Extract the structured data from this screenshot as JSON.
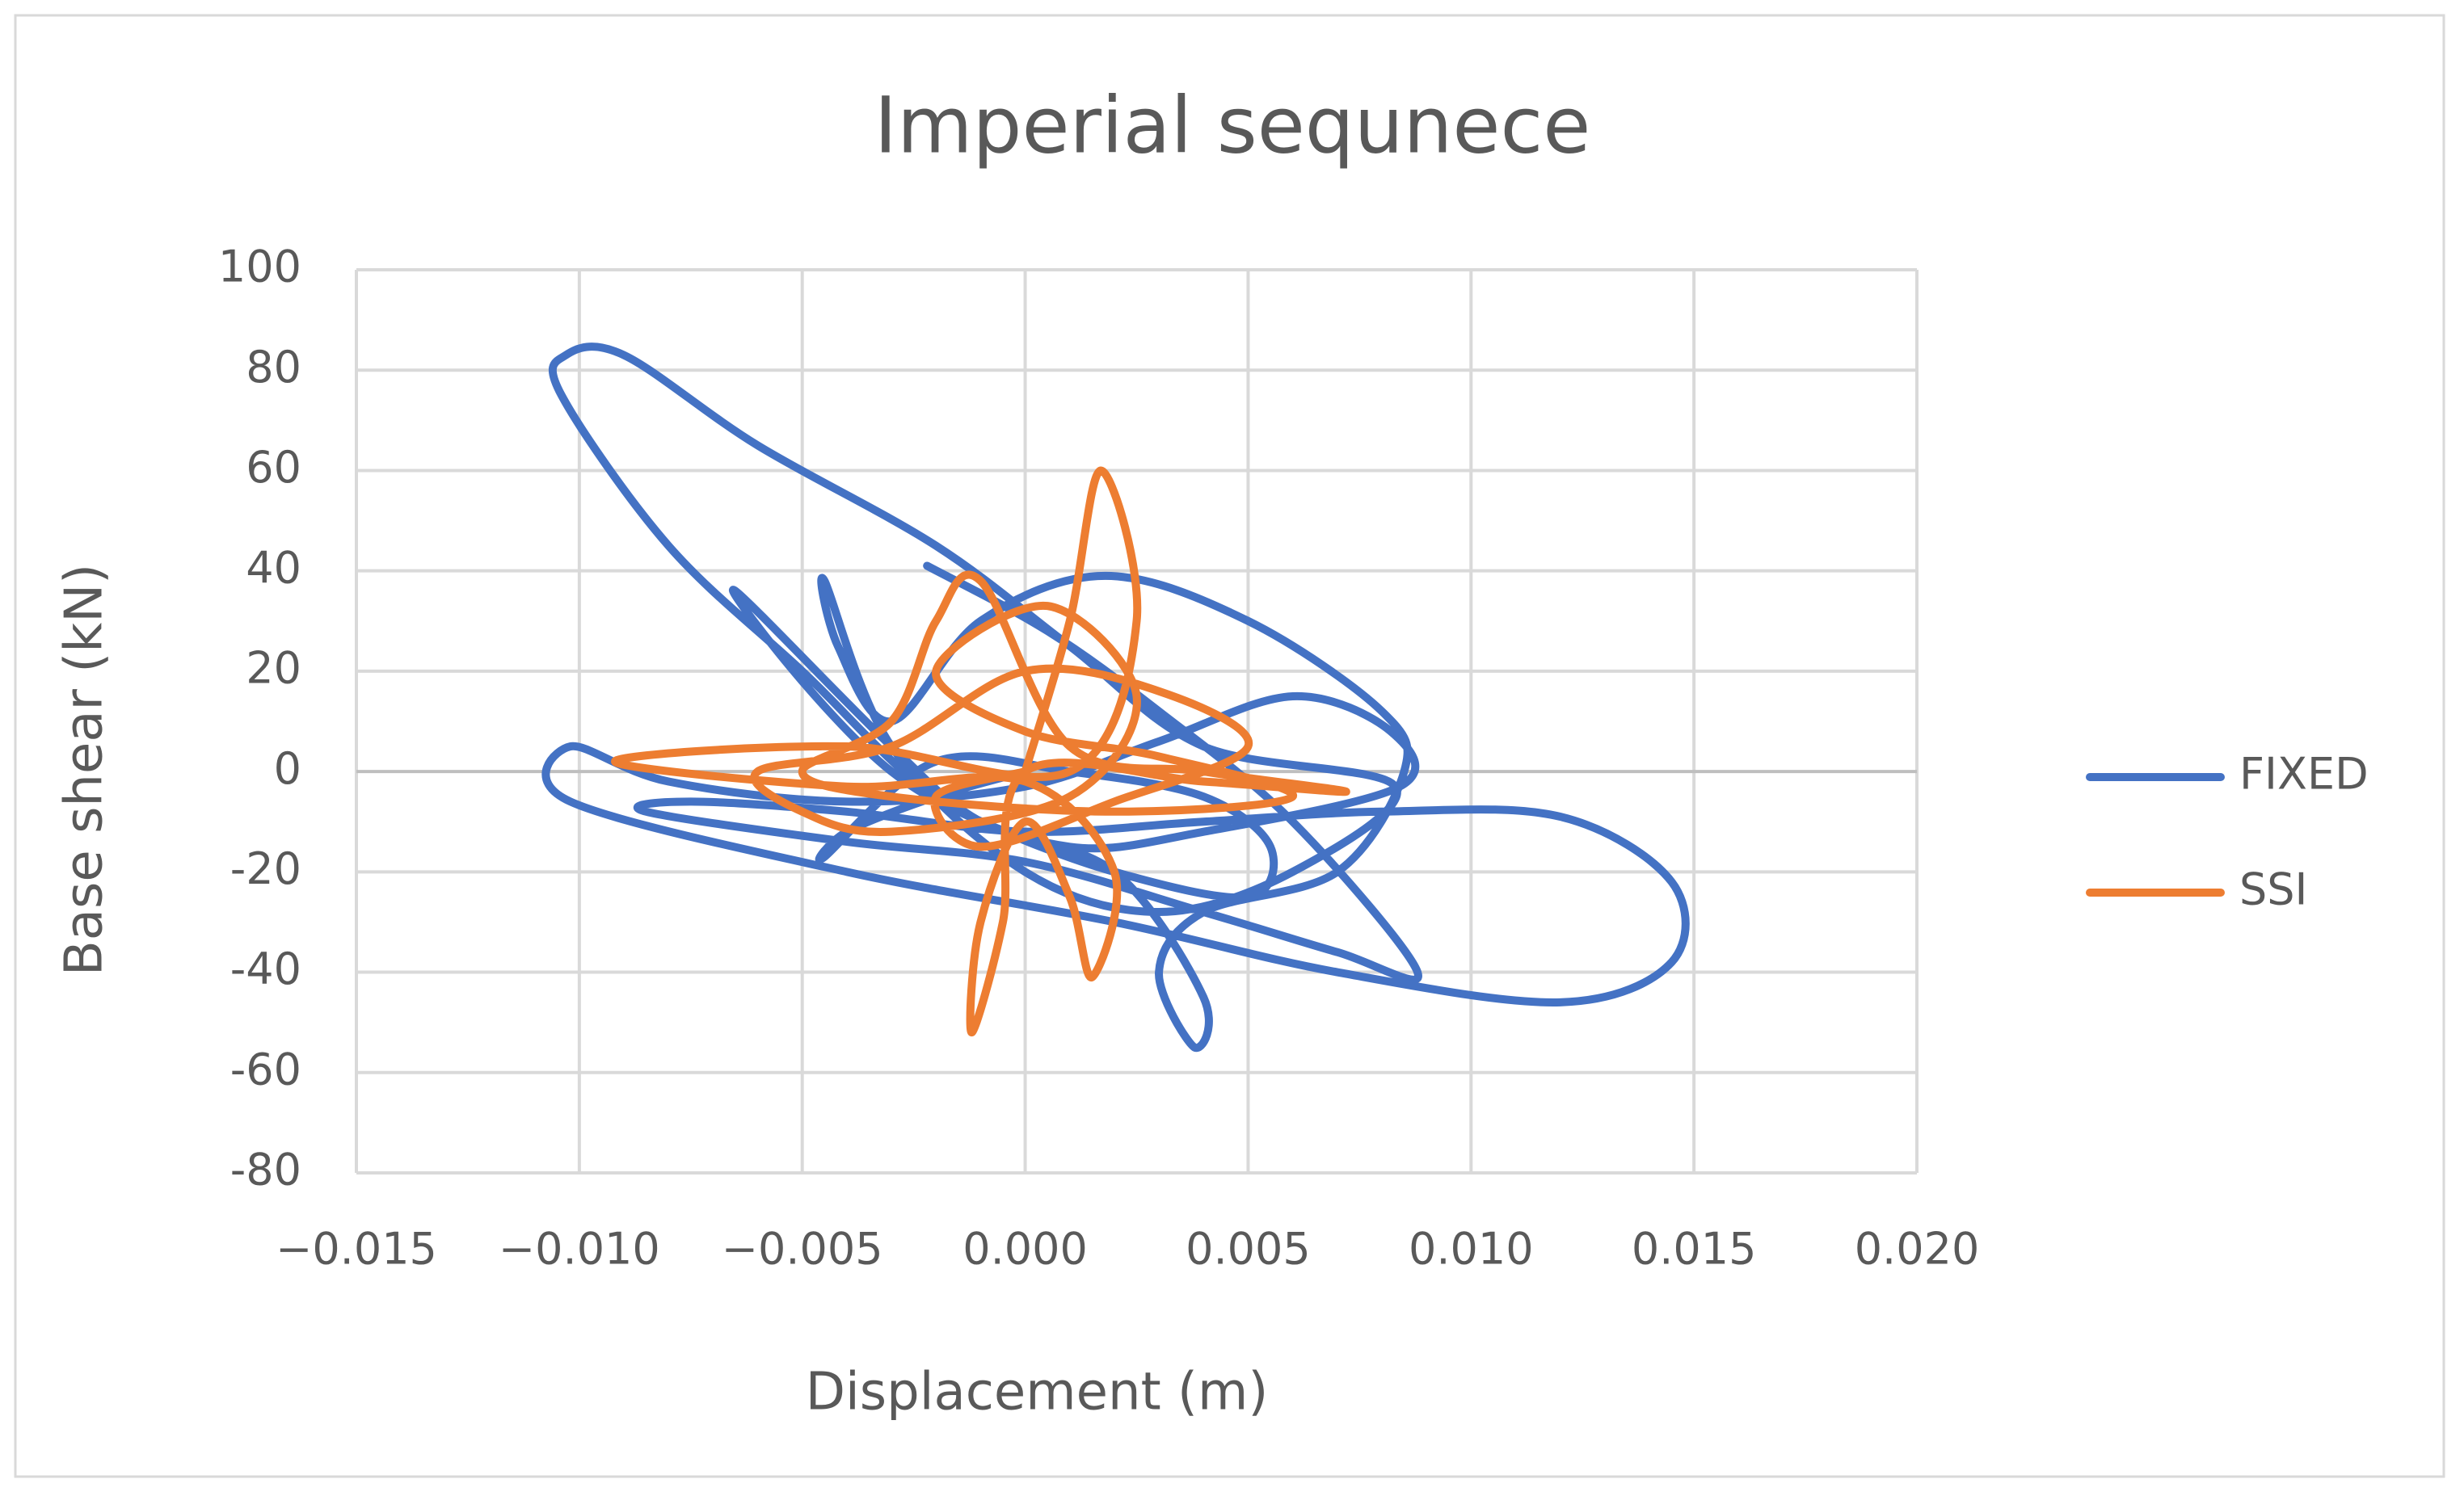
{
  "chart_data": {
    "type": "line",
    "title": "Imperial sequnece",
    "x_label": "Displacement (m)",
    "y_label": "Base shear (kN)",
    "xlim": [
      -0.015,
      0.02
    ],
    "xticks": [
      {
        "value": -0.015,
        "label": "−0.015"
      },
      {
        "value": -0.01,
        "label": "−0.010"
      },
      {
        "value": -0.005,
        "label": "−0.005"
      },
      {
        "value": 0,
        "label": "0.000"
      },
      {
        "value": 0.005,
        "label": "0.005"
      },
      {
        "value": 0.01,
        "label": "0.010"
      },
      {
        "value": 0.015,
        "label": "0.015"
      },
      {
        "value": 0.02,
        "label": "0.020"
      }
    ],
    "ylim": [
      -80,
      100
    ],
    "yticks": [
      -80,
      -60,
      -40,
      -20,
      0,
      20,
      40,
      60,
      80,
      100
    ],
    "grid": true,
    "legend": "right",
    "series": [
      {
        "name": "FIXED",
        "color": "#4472c4",
        "x": [
          -0.0022,
          0.0005,
          0.003,
          0.006,
          0.0088,
          0.007,
          0.004,
          0.0,
          -0.004,
          -0.0085,
          -0.0075,
          -0.004,
          0.0,
          0.004,
          0.008,
          0.012,
          0.0145,
          0.0145,
          0.012,
          0.007,
          0.002,
          -0.004,
          -0.0102,
          -0.0102,
          -0.008,
          -0.004,
          0.0,
          0.003,
          0.006,
          0.0082,
          0.0084,
          0.004,
          0.001,
          -0.002,
          -0.005,
          -0.008,
          -0.0104,
          -0.0103,
          -0.009,
          -0.006,
          -0.002,
          0.001,
          0.004,
          0.0083,
          0.006,
          0.003,
          0.0,
          -0.003,
          -0.0045,
          -0.0042,
          -0.003,
          -0.001,
          0.0018,
          0.005,
          0.008,
          0.0085,
          0.007,
          0.004,
          0.003,
          0.0038,
          0.004,
          0.002,
          -0.001,
          -0.003,
          -0.0065,
          -0.005,
          -0.003,
          -0.001,
          0.002,
          0.005,
          0.0055,
          0.004,
          0.001,
          -0.002,
          -0.0045,
          -0.004,
          -0.002,
          0.0
        ],
        "values": [
          41,
          28,
          12,
          -10,
          -40,
          -36,
          -28,
          -18,
          -14,
          -8,
          -6,
          -8,
          -12,
          -10,
          -8,
          -9,
          -22,
          -38,
          -46,
          -40,
          -30,
          -20,
          -6,
          5,
          -2,
          -6,
          -3,
          6,
          15,
          8,
          -3,
          -12,
          -15,
          -5,
          20,
          45,
          75,
          83,
          83,
          65,
          45,
          25,
          5,
          -3,
          -20,
          -28,
          -20,
          5,
          38,
          25,
          10,
          30,
          39,
          30,
          12,
          0,
          -20,
          -28,
          -40,
          -55,
          -45,
          -20,
          -10,
          5,
          36,
          18,
          0,
          -10,
          -20,
          -25,
          -15,
          -5,
          0,
          2,
          -17,
          -12,
          -5,
          0
        ]
      },
      {
        "name": "SSI",
        "color": "#ed7d31",
        "x": [
          0.0,
          0.001,
          0.0017,
          0.0025,
          0.001,
          -0.004,
          -0.0092,
          -0.004,
          0.0,
          0.002,
          0.0015,
          0.001,
          0.0,
          -0.001,
          -0.0012,
          -0.0005,
          0.0,
          0.004,
          0.0072,
          0.004,
          0.001,
          -0.001,
          -0.002,
          -0.003,
          -0.005,
          -0.003,
          0.002,
          0.006,
          0.003,
          0.0,
          -0.002,
          0.0005,
          0.0025,
          0.001,
          -0.003,
          -0.005,
          -0.006,
          -0.003,
          0.0,
          0.003,
          0.005,
          0.002,
          -0.001,
          -0.002,
          0.0
        ],
        "values": [
          0,
          30,
          60,
          30,
          0,
          5,
          2,
          -3,
          -2,
          -20,
          -41,
          -25,
          -10,
          -30,
          -52,
          -30,
          0,
          -2,
          -4,
          0,
          5,
          38,
          30,
          10,
          0,
          -5,
          -8,
          -5,
          3,
          8,
          20,
          33,
          15,
          -5,
          -12,
          -8,
          0,
          5,
          20,
          16,
          5,
          -6,
          -15,
          -5,
          0
        ]
      }
    ]
  }
}
